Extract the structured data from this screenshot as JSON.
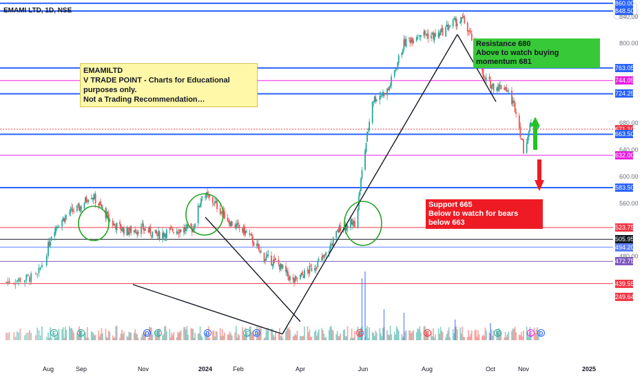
{
  "chart_data": {
    "type": "candlestick",
    "title": "EMAMI LTD, 1D, NSE",
    "currency": "INR",
    "x_ticks": [
      "Aug",
      "Sep",
      "Nov",
      "2024",
      "Feb",
      "Apr",
      "Jun",
      "Aug",
      "Oct",
      "Nov",
      "2025"
    ],
    "y_ticks": [
      "840.00",
      "800.00",
      "680.00",
      "640.00",
      "600.00",
      "560.00",
      "480.00"
    ],
    "ylim": [
      420,
      880
    ],
    "price_path": [
      {
        "date": "2023-07-05",
        "close": 442
      },
      {
        "date": "2023-07-25",
        "close": 450
      },
      {
        "date": "2023-08-05",
        "close": 520
      },
      {
        "date": "2023-08-20",
        "close": 545
      },
      {
        "date": "2023-09-01",
        "close": 555
      },
      {
        "date": "2023-09-10",
        "close": 575
      },
      {
        "date": "2023-09-20",
        "close": 555
      },
      {
        "date": "2023-10-01",
        "close": 530
      },
      {
        "date": "2023-10-15",
        "close": 518
      },
      {
        "date": "2023-11-01",
        "close": 522
      },
      {
        "date": "2023-11-15",
        "close": 512
      },
      {
        "date": "2023-12-01",
        "close": 520
      },
      {
        "date": "2023-12-20",
        "close": 522
      },
      {
        "date": "2023-12-29",
        "close": 575
      },
      {
        "date": "2024-01-10",
        "close": 560
      },
      {
        "date": "2024-01-25",
        "close": 530
      },
      {
        "date": "2024-02-10",
        "close": 515
      },
      {
        "date": "2024-02-25",
        "close": 480
      },
      {
        "date": "2024-03-10",
        "close": 470
      },
      {
        "date": "2024-03-25",
        "close": 442
      },
      {
        "date": "2024-04-10",
        "close": 460
      },
      {
        "date": "2024-04-25",
        "close": 480
      },
      {
        "date": "2024-05-10",
        "close": 525
      },
      {
        "date": "2024-05-25",
        "close": 530
      },
      {
        "date": "2024-06-01",
        "close": 620
      },
      {
        "date": "2024-06-10",
        "close": 715
      },
      {
        "date": "2024-06-25",
        "close": 730
      },
      {
        "date": "2024-07-10",
        "close": 800
      },
      {
        "date": "2024-07-25",
        "close": 815
      },
      {
        "date": "2024-08-10",
        "close": 810
      },
      {
        "date": "2024-08-25",
        "close": 830
      },
      {
        "date": "2024-09-05",
        "close": 835
      },
      {
        "date": "2024-09-15",
        "close": 800
      },
      {
        "date": "2024-09-25",
        "close": 745
      },
      {
        "date": "2024-10-05",
        "close": 735
      },
      {
        "date": "2024-10-15",
        "close": 735
      },
      {
        "date": "2024-10-25",
        "close": 700
      },
      {
        "date": "2024-11-01",
        "close": 640
      },
      {
        "date": "2024-11-10",
        "close": 690
      },
      {
        "date": "2024-11-15",
        "close": 671.1
      }
    ],
    "volume_ticks": [
      {
        "date": "2024-06-01",
        "v": 1.0
      },
      {
        "date": "2024-05-31",
        "v": 0.7
      },
      {
        "date": "2024-06-20",
        "v": 0.4
      }
    ],
    "price_levels": [
      {
        "label": "860.00",
        "value": 860,
        "color": "#2962ff"
      },
      {
        "label": "848.50",
        "value": 848.5,
        "color": "#2962ff"
      },
      {
        "label": "763.05",
        "value": 763.05,
        "color": "#2962ff"
      },
      {
        "label": "744.05",
        "value": 744.05,
        "color": "#e91ee0"
      },
      {
        "label": "724.25",
        "value": 724.25,
        "color": "#2962ff"
      },
      {
        "label": "671.10",
        "value": 671.1,
        "color": "#f23645"
      },
      {
        "label": "663.50",
        "value": 663.5,
        "color": "#2962ff"
      },
      {
        "label": "632.00",
        "value": 632,
        "color": "#e91ee0"
      },
      {
        "label": "583.50",
        "value": 583.5,
        "color": "#2962ff"
      },
      {
        "label": "523.75",
        "value": 523.75,
        "color": "#f23645"
      },
      {
        "label": "505.95",
        "value": 505.95,
        "color": "#131722"
      },
      {
        "label": "494.20",
        "value": 494.2,
        "color": "#5b7fff"
      },
      {
        "label": "472.75",
        "value": 472.75,
        "color": "#7e57c2"
      },
      {
        "label": "439.55",
        "value": 439.55,
        "color": "#f23645"
      },
      {
        "label": "249.647K",
        "value": 420,
        "color": "#f23645"
      }
    ],
    "annotations": {
      "note_lines": [
        "EMAMILTD",
        "V TRADE POINT - Charts for Educational purposes only.",
        "Not a Trading Recommendation…"
      ],
      "resistance_lines": [
        "Resistance  680",
        "Above to watch buying momentum 681"
      ],
      "support_lines": [
        "Support 665",
        "Below to watch for bears below 663"
      ]
    },
    "event_markers": [
      "E",
      "E",
      "D",
      "E",
      "D",
      "E",
      "D",
      "E",
      "E",
      "E",
      "E",
      "D"
    ]
  }
}
